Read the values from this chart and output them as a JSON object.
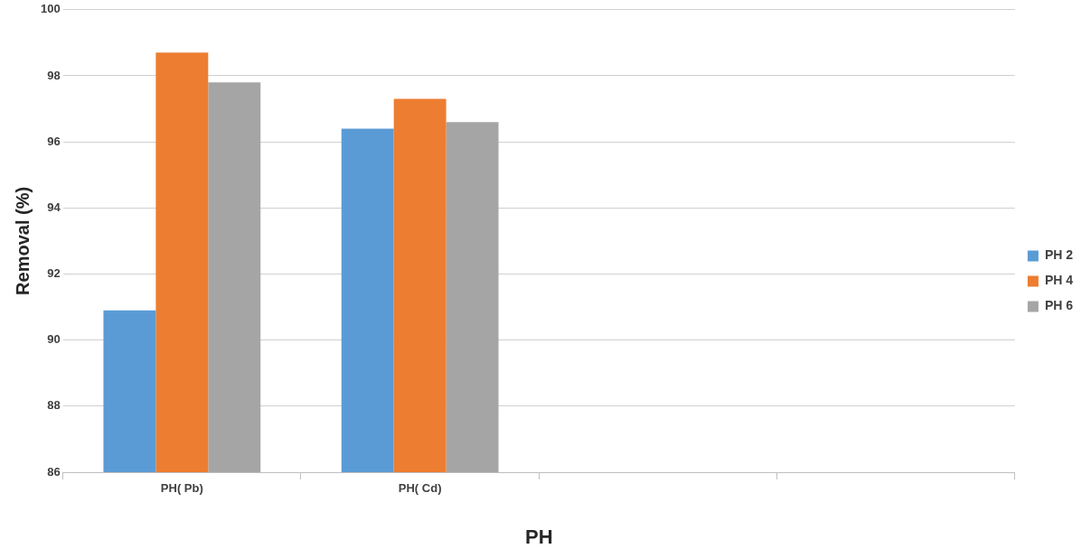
{
  "chart_data": {
    "type": "bar",
    "xlabel": "PH",
    "ylabel": "Removal (%)",
    "categories": [
      "PH( Pb)",
      "PH( Cd)",
      null,
      null
    ],
    "series": [
      {
        "name": "PH 2",
        "color": "#5b9bd5",
        "values": [
          90.9,
          96.4,
          null,
          null
        ]
      },
      {
        "name": "PH 4",
        "color": "#ed7d31",
        "values": [
          98.7,
          97.3,
          null,
          null
        ]
      },
      {
        "name": "PH 6",
        "color": "#a5a5a5",
        "values": [
          97.8,
          96.6,
          null,
          null
        ]
      }
    ],
    "ylim": [
      86,
      100
    ],
    "yticks": [
      86,
      88,
      90,
      92,
      94,
      96,
      98,
      100
    ],
    "grid": "y",
    "legend": "right"
  }
}
